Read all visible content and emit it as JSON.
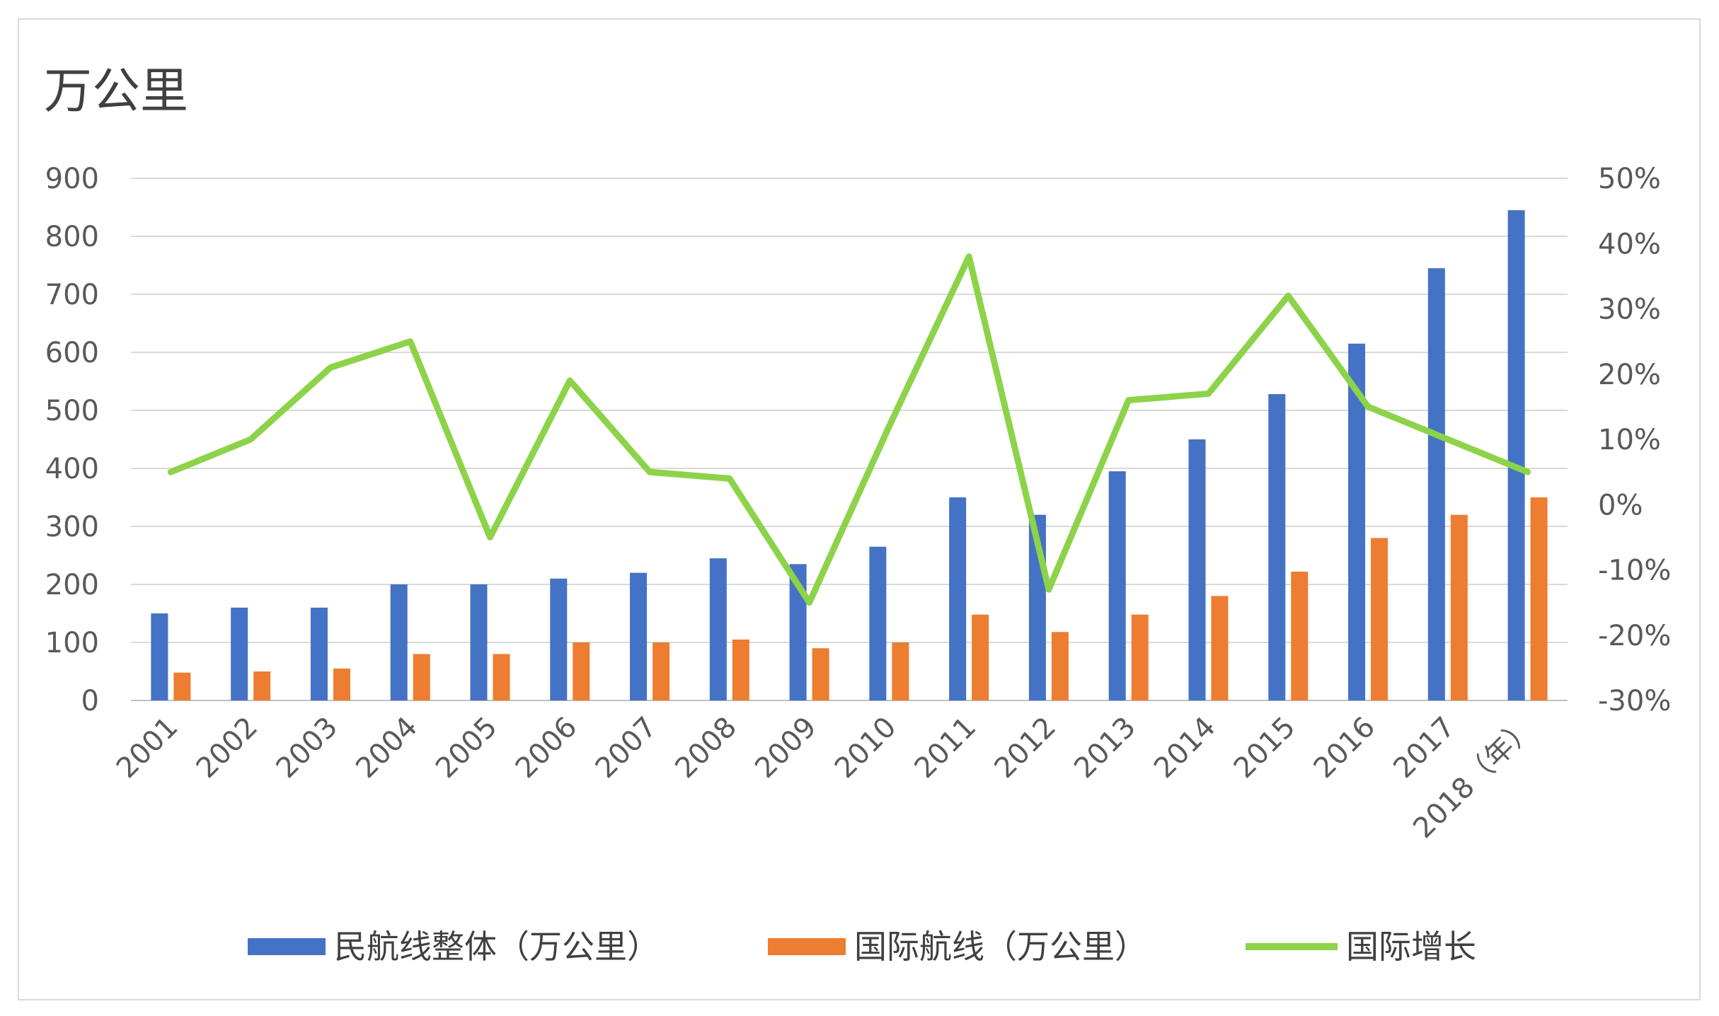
{
  "chart_data": {
    "type": "bar",
    "title": "",
    "unit_label": "万公里",
    "categories": [
      "2001",
      "2002",
      "2003",
      "2004",
      "2005",
      "2006",
      "2007",
      "2008",
      "2009",
      "2010",
      "2011",
      "2012",
      "2013",
      "2014",
      "2015",
      "2016",
      "2017",
      "2018（年）"
    ],
    "series": [
      {
        "name": "民航线整体（万公里）",
        "type": "bar",
        "axis": "left",
        "color": "#4472C4",
        "values": [
          150,
          160,
          160,
          200,
          200,
          210,
          220,
          245,
          235,
          265,
          350,
          320,
          395,
          450,
          528,
          615,
          745,
          845
        ]
      },
      {
        "name": "国际航线（万公里）",
        "type": "bar",
        "axis": "left",
        "color": "#ED7D31",
        "values": [
          48,
          50,
          55,
          80,
          80,
          100,
          100,
          105,
          90,
          100,
          148,
          118,
          148,
          180,
          222,
          280,
          320,
          350
        ]
      },
      {
        "name": "国际增长",
        "type": "line",
        "axis": "right",
        "color": "#8CD34A",
        "values": [
          5,
          10,
          21,
          25,
          -5,
          19,
          5,
          4,
          -15,
          12,
          38,
          -13,
          16,
          17,
          32,
          15,
          10,
          5
        ]
      }
    ],
    "ylim_left": [
      0,
      900
    ],
    "left_ticks": [
      "0",
      "100",
      "200",
      "300",
      "400",
      "500",
      "600",
      "700",
      "800",
      "900"
    ],
    "ylim_right": [
      -30,
      50
    ],
    "right_ticks": [
      "-30%",
      "-20%",
      "-10%",
      "0%",
      "10%",
      "20%",
      "30%",
      "40%",
      "50%"
    ],
    "grid": true,
    "legend_position": "bottom"
  }
}
